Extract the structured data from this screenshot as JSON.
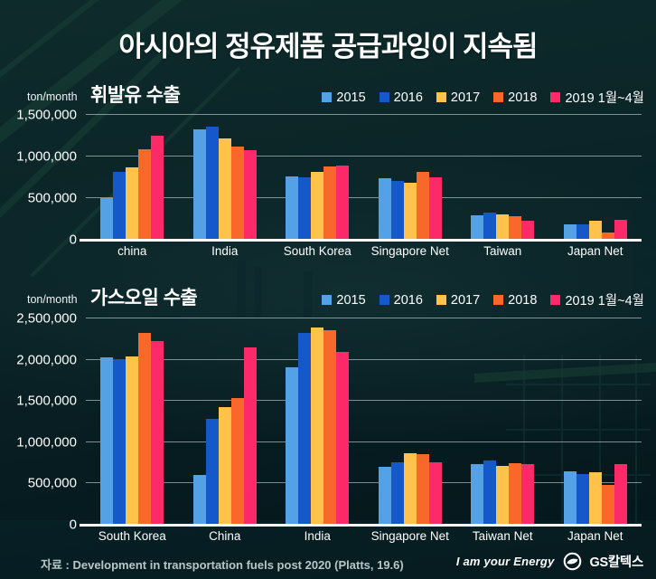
{
  "title": "아시아의 정유제품 공급과잉이 지속됨",
  "footer": {
    "source": "자료 : Development in transportation fuels post 2020 (Platts, 19.6)",
    "slogan": "I am your Energy",
    "brand": "GS칼텍스"
  },
  "colors": {
    "background": "#0a2326",
    "gridline": "rgba(225,234,234,0.55)",
    "axis": "#ffffff",
    "series_2015": "#55A1E5",
    "series_2016": "#1559C9",
    "series_2017": "#FFC24B",
    "series_2018": "#F8682A",
    "series_2019": "#FC2A68"
  },
  "chart_data": [
    {
      "type": "bar",
      "title": "휘발유 수출",
      "unit": "ton/month",
      "xlabel": "",
      "ylabel": "ton/month",
      "ylim": [
        0,
        1500000
      ],
      "ytick_step": 500000,
      "grid": true,
      "legend_position": "top-right",
      "categories": [
        "china",
        "India",
        "South Korea",
        "Singapore Net",
        "Taiwan",
        "Japan Net"
      ],
      "series": [
        {
          "name": "2015",
          "color": "#55A1E5",
          "values": [
            500000,
            1330000,
            760000,
            740000,
            290000,
            180000
          ]
        },
        {
          "name": "2016",
          "color": "#1559C9",
          "values": [
            820000,
            1360000,
            750000,
            710000,
            330000,
            190000
          ]
        },
        {
          "name": "2017",
          "color": "#FFC24B",
          "values": [
            870000,
            1220000,
            810000,
            690000,
            300000,
            230000
          ]
        },
        {
          "name": "2018",
          "color": "#F8682A",
          "values": [
            1090000,
            1120000,
            880000,
            820000,
            280000,
            90000
          ]
        },
        {
          "name": "2019 1월~4월",
          "color": "#FC2A68",
          "values": [
            1250000,
            1080000,
            890000,
            750000,
            230000,
            240000
          ]
        }
      ]
    },
    {
      "type": "bar",
      "title": "가스오일 수출",
      "unit": "ton/month",
      "xlabel": "",
      "ylabel": "ton/month",
      "ylim": [
        0,
        2500000
      ],
      "ytick_step": 500000,
      "grid": true,
      "legend_position": "top-right",
      "categories": [
        "South Korea",
        "China",
        "India",
        "Singapore Net",
        "Taiwan Net",
        "Japan Net"
      ],
      "series": [
        {
          "name": "2015",
          "color": "#55A1E5",
          "values": [
            2030000,
            600000,
            1910000,
            700000,
            740000,
            650000
          ]
        },
        {
          "name": "2016",
          "color": "#1559C9",
          "values": [
            2010000,
            1280000,
            2320000,
            760000,
            780000,
            610000
          ]
        },
        {
          "name": "2017",
          "color": "#FFC24B",
          "values": [
            2040000,
            1430000,
            2390000,
            870000,
            710000,
            640000
          ]
        },
        {
          "name": "2018",
          "color": "#F8682A",
          "values": [
            2320000,
            1540000,
            2360000,
            860000,
            750000,
            480000
          ]
        },
        {
          "name": "2019 1월~4월",
          "color": "#FC2A68",
          "values": [
            2230000,
            2150000,
            2090000,
            760000,
            730000,
            730000
          ]
        }
      ]
    }
  ]
}
